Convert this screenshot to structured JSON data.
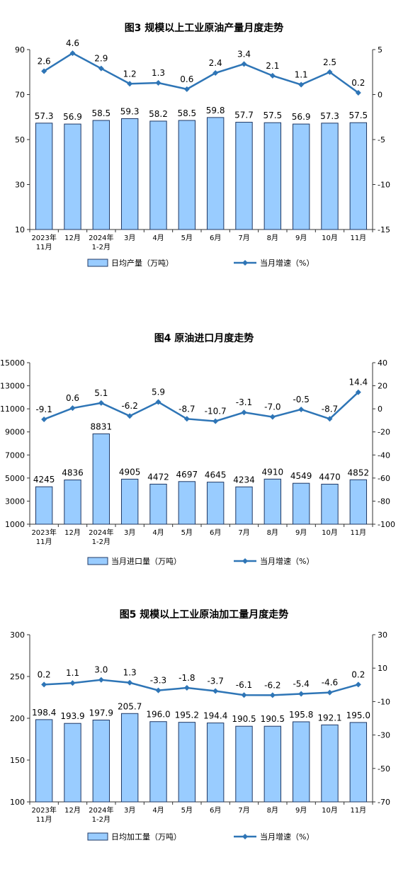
{
  "chart_data": [
    {
      "type": "bar",
      "title": "图3  规模以上工业原油产量月度走势",
      "categories": [
        "2023年\n11月",
        "12月",
        "2024年\n1-2月",
        "3月",
        "4月",
        "5月",
        "6月",
        "7月",
        "8月",
        "9月",
        "10月",
        "11月"
      ],
      "series": [
        {
          "name": "日均产量（万吨）",
          "type": "bar",
          "axis": "left",
          "values": [
            57.3,
            56.9,
            58.5,
            59.3,
            58.2,
            58.5,
            59.8,
            57.7,
            57.5,
            56.9,
            57.3,
            57.5
          ],
          "labels": [
            "57.3",
            "56.9",
            "58.5",
            "59.3",
            "58.2",
            "58.5",
            "59.8",
            "57.7",
            "57.5",
            "56.9",
            "57.3",
            "57.5"
          ]
        },
        {
          "name": "当月增速（%）",
          "type": "line",
          "axis": "right",
          "values": [
            2.6,
            4.6,
            2.9,
            1.2,
            1.3,
            0.6,
            2.4,
            3.4,
            2.1,
            1.1,
            2.5,
            0.2
          ],
          "labels": [
            "2.6",
            "4.6",
            "2.9",
            "1.2",
            "1.3",
            "0.6",
            "2.4",
            "3.4",
            "2.1",
            "1.1",
            "2.5",
            "0.2"
          ]
        }
      ],
      "ylim_left": [
        10,
        90
      ],
      "yticks_left": [
        "10",
        "30",
        "50",
        "70",
        "90"
      ],
      "ylim_right": [
        -15,
        5
      ],
      "yticks_right": [
        "-15",
        "-10",
        "-5",
        "0",
        "5"
      ],
      "legend_position": "bottom",
      "grid": false,
      "colors": {
        "bar_fill": "#99ccff",
        "bar_stroke": "#1f3864",
        "line": "#2e75b6"
      }
    },
    {
      "type": "bar",
      "title": "图4  原油进口月度走势",
      "categories": [
        "2023年\n11月",
        "12月",
        "2024年\n1-2月",
        "3月",
        "4月",
        "5月",
        "6月",
        "7月",
        "8月",
        "9月",
        "10月",
        "11月"
      ],
      "series": [
        {
          "name": "当月进口量（万吨）",
          "type": "bar",
          "axis": "left",
          "values": [
            4245,
            4836,
            8831,
            4905,
            4472,
            4697,
            4645,
            4234,
            4910,
            4549,
            4470,
            4852
          ],
          "labels": [
            "4245",
            "4836",
            "8831",
            "4905",
            "4472",
            "4697",
            "4645",
            "4234",
            "4910",
            "4549",
            "4470",
            "4852"
          ]
        },
        {
          "name": "当月增速（%）",
          "type": "line",
          "axis": "right",
          "values": [
            -9.1,
            0.6,
            5.1,
            -6.2,
            5.9,
            -8.7,
            -10.7,
            -3.1,
            -7.0,
            -0.5,
            -8.7,
            14.4
          ],
          "labels": [
            "-9.1",
            "0.6",
            "5.1",
            "-6.2",
            "5.9",
            "-8.7",
            "-10.7",
            "-3.1",
            "-7.0",
            "-0.5",
            "-8.7",
            "14.4"
          ]
        }
      ],
      "ylim_left": [
        1000,
        15000
      ],
      "yticks_left": [
        "1000",
        "3000",
        "5000",
        "7000",
        "9000",
        "11000",
        "13000",
        "15000"
      ],
      "ylim_right": [
        -100,
        40
      ],
      "yticks_right": [
        "-100",
        "-80",
        "-60",
        "-40",
        "-20",
        "0",
        "20",
        "40"
      ],
      "legend_position": "bottom",
      "grid": false,
      "colors": {
        "bar_fill": "#99ccff",
        "bar_stroke": "#1f3864",
        "line": "#2e75b6"
      }
    },
    {
      "type": "bar",
      "title": "图5  规模以上工业原油加工量月度走势",
      "categories": [
        "2023年\n11月",
        "12月",
        "2024年\n1-2月",
        "3月",
        "4月",
        "5月",
        "6月",
        "7月",
        "8月",
        "9月",
        "10月",
        "11月"
      ],
      "series": [
        {
          "name": "日均加工量（万吨）",
          "type": "bar",
          "axis": "left",
          "values": [
            198.4,
            193.9,
            197.9,
            205.7,
            196.0,
            195.2,
            194.4,
            190.5,
            190.5,
            195.8,
            192.1,
            195.0
          ],
          "labels": [
            "198.4",
            "193.9",
            "197.9",
            "205.7",
            "196.0",
            "195.2",
            "194.4",
            "190.5",
            "190.5",
            "195.8",
            "192.1",
            "195.0"
          ]
        },
        {
          "name": "当月增速（%）",
          "type": "line",
          "axis": "right",
          "values": [
            0.2,
            1.1,
            3.0,
            1.3,
            -3.3,
            -1.8,
            -3.7,
            -6.1,
            -6.2,
            -5.4,
            -4.6,
            0.2
          ],
          "labels": [
            "0.2",
            "1.1",
            "3.0",
            "1.3",
            "-3.3",
            "-1.8",
            "-3.7",
            "-6.1",
            "-6.2",
            "-5.4",
            "-4.6",
            "0.2"
          ]
        }
      ],
      "ylim_left": [
        100,
        300
      ],
      "yticks_left": [
        "100",
        "150",
        "200",
        "250",
        "300"
      ],
      "ylim_right": [
        -70,
        30
      ],
      "yticks_right": [
        "-70",
        "-50",
        "-30",
        "-10",
        "10",
        "30"
      ],
      "legend_position": "bottom",
      "grid": false,
      "colors": {
        "bar_fill": "#99ccff",
        "bar_stroke": "#1f3864",
        "line": "#2e75b6"
      }
    }
  ]
}
